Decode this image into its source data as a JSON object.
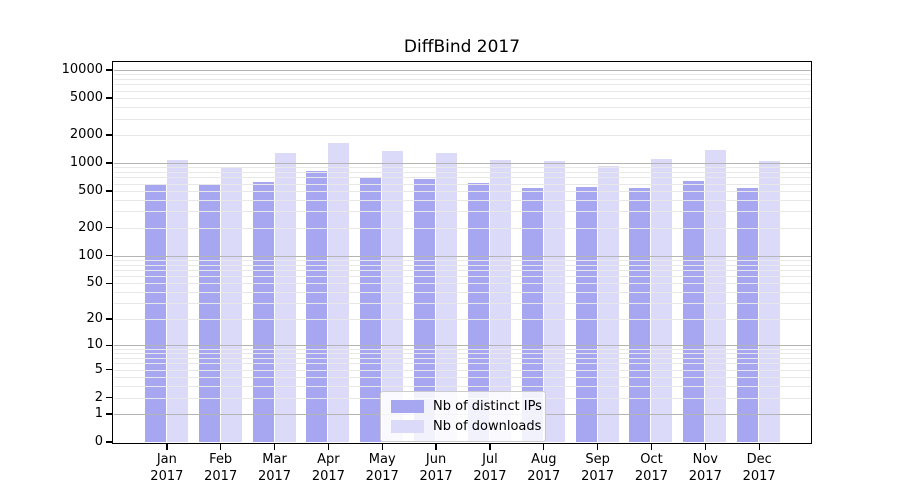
{
  "title": "DiffBind 2017",
  "legend": {
    "items": [
      {
        "label": "Nb of distinct IPs",
        "key": "distinct-ips"
      },
      {
        "label": "Nb of downloads",
        "key": "downloads"
      }
    ]
  },
  "colors": {
    "series": [
      "#a6a6f1",
      "#dbdbf9"
    ],
    "grid_major": "#b4b4b4",
    "grid_minor": "#e8e8e8",
    "spine": "#000000",
    "legend_border": "#cccccc"
  },
  "chart_data": {
    "type": "bar",
    "title": "DiffBind 2017",
    "yscale": "log10(value+1)",
    "grid": true,
    "legend_position": "lower-center",
    "categories": [
      "Jan 2017",
      "Feb 2017",
      "Mar 2017",
      "Apr 2017",
      "May 2017",
      "Jun 2017",
      "Jul 2017",
      "Aug 2017",
      "Sep 2017",
      "Oct 2017",
      "Nov 2017",
      "Dec 2017"
    ],
    "series": [
      {
        "name": "Nb of distinct IPs",
        "values": [
          580,
          595,
          630,
          820,
          690,
          675,
          610,
          540,
          550,
          540,
          640,
          540
        ]
      },
      {
        "name": "Nb of downloads",
        "values": [
          1080,
          905,
          1280,
          1640,
          1350,
          1285,
          1080,
          1050,
          930,
          1105,
          1380,
          1050
        ]
      }
    ],
    "y_ticks": [
      0,
      1,
      2,
      5,
      10,
      20,
      50,
      100,
      200,
      500,
      1000,
      2000,
      5000,
      10000
    ],
    "ylim": [
      0,
      12000
    ]
  }
}
